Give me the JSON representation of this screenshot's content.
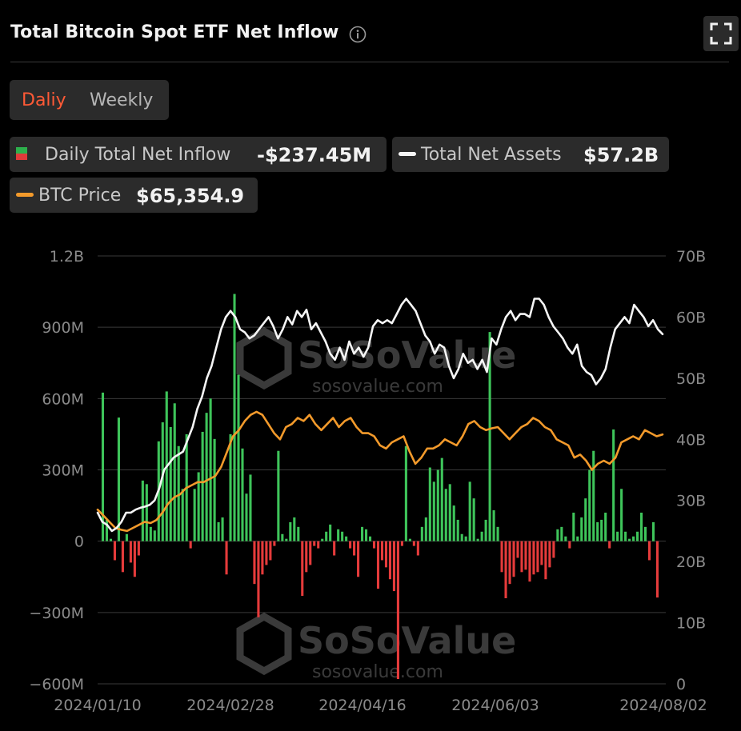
{
  "header": {
    "title": "Total Bitcoin Spot ETF Net Inflow",
    "info_icon": "info-icon",
    "expand_icon": "expand-icon"
  },
  "toggle": {
    "daily_label": "Daliy",
    "weekly_label": "Weekly",
    "active": "daily"
  },
  "legend": {
    "inflow": {
      "label": "Daily Total Net Inflow",
      "value": "-$237.45M"
    },
    "assets": {
      "label": "Total Net Assets",
      "value": "$57.2B"
    },
    "price": {
      "label": "BTC Price",
      "value": "$65,354.9"
    }
  },
  "colors": {
    "positive": "#3ec45a",
    "negative": "#e53b3b",
    "assets_line": "#f5f5f5",
    "price_line": "#f39a2b",
    "accent": "#ff5a36",
    "grid": "#3a3a3a",
    "axis_text": "#8a8a8a"
  },
  "watermark": {
    "brand": "SoSoValue",
    "url": "sosovalue.com"
  },
  "chart_data": {
    "type": "bar",
    "x_tick_labels": [
      "2024/01/10",
      "2024/02/28",
      "2024/04/16",
      "2024/06/03",
      "2024/08/02"
    ],
    "y_left": {
      "ticks": [
        "1.2B",
        "900M",
        "600M",
        "300M",
        "0",
        "−300M",
        "−600M"
      ],
      "ylim": [
        -600,
        1200
      ],
      "unit": "M"
    },
    "y_right": {
      "ticks": [
        "70B",
        "60B",
        "50B",
        "40B",
        "30B",
        "20B",
        "10B",
        "0"
      ],
      "ylim": [
        0,
        70
      ],
      "unit": "B"
    },
    "series": [
      {
        "name": "Daily Total Net Inflow",
        "type": "bar",
        "values": [
          625,
          90,
          10,
          -80,
          520,
          -130,
          30,
          -90,
          -150,
          -60,
          255,
          240,
          60,
          45,
          420,
          500,
          630,
          480,
          580,
          400,
          220,
          450,
          -30,
          220,
          290,
          460,
          540,
          600,
          430,
          80,
          100,
          -140,
          450,
          1040,
          700,
          390,
          200,
          280,
          -180,
          -320,
          -140,
          -100,
          -80,
          -20,
          380,
          30,
          10,
          80,
          100,
          60,
          -230,
          -130,
          -100,
          -20,
          -30,
          10,
          40,
          70,
          -60,
          50,
          40,
          20,
          -30,
          -60,
          -150,
          60,
          50,
          20,
          -30,
          -200,
          -80,
          -110,
          -160,
          -210,
          -580,
          -20,
          400,
          10,
          -20,
          -60,
          60,
          100,
          310,
          250,
          300,
          350,
          220,
          240,
          150,
          90,
          30,
          20,
          250,
          180,
          10,
          40,
          90,
          880,
          130,
          60,
          -130,
          -240,
          -180,
          -150,
          -70,
          -130,
          -120,
          -170,
          -140,
          -130,
          -100,
          -160,
          -110,
          -70,
          50,
          60,
          20,
          -30,
          120,
          20,
          100,
          180,
          300,
          380,
          80,
          90,
          120,
          -30,
          470,
          40,
          220,
          40,
          10,
          20,
          40,
          120,
          60,
          -80,
          80,
          -237
        ]
      },
      {
        "name": "Total Net Assets",
        "type": "line",
        "axis": "right",
        "values": [
          28,
          26.5,
          26,
          25,
          25.5,
          26.5,
          28,
          28,
          28.5,
          28.8,
          29,
          29.3,
          30,
          32,
          35,
          36,
          37,
          37.5,
          38,
          40,
          42,
          45,
          47,
          50,
          52,
          55,
          58,
          60,
          61,
          60,
          58,
          57.5,
          56.5,
          57,
          58,
          59,
          60,
          58.5,
          56.5,
          58,
          60,
          58.8,
          61,
          60,
          61.2,
          58,
          59,
          57.5,
          56,
          54,
          53,
          55,
          53,
          56,
          54,
          55,
          53.5,
          55,
          58.5,
          59.5,
          59,
          59.5,
          59,
          60.5,
          62,
          63,
          62,
          61,
          59,
          57,
          56,
          54,
          55.5,
          55,
          52,
          50,
          51.5,
          54,
          52.5,
          53,
          51.5,
          53,
          51,
          56.5,
          55.5,
          58,
          60,
          61,
          59.5,
          60.5,
          60.5,
          60,
          63,
          63,
          62,
          60,
          58.5,
          57.5,
          56.5,
          55,
          54,
          55.5,
          52,
          51,
          50.5,
          49,
          50,
          51.5,
          55,
          58,
          59,
          60,
          59,
          62,
          61,
          60,
          58.5,
          59.5,
          58,
          57.2
        ]
      },
      {
        "name": "BTC Price",
        "type": "line",
        "axis": "right",
        "values": [
          28.5,
          27.5,
          26.5,
          25.5,
          25.2,
          25,
          25.5,
          26,
          26.5,
          26.3,
          26.8,
          28,
          29.5,
          30.5,
          31,
          32,
          32.5,
          33,
          33,
          33.5,
          34,
          35.5,
          38,
          40.5,
          41.5,
          43,
          44,
          44.5,
          44,
          42.5,
          41,
          40,
          42,
          42.5,
          43.5,
          43,
          44,
          42.5,
          41.5,
          42.5,
          43.5,
          42,
          43,
          43.5,
          42,
          41,
          41,
          40.5,
          39,
          38.5,
          39.5,
          40,
          40.5,
          38,
          36,
          37,
          38.5,
          38.5,
          39,
          40,
          39.5,
          39,
          40.5,
          42.5,
          43,
          42,
          41.5,
          41.8,
          42,
          41,
          40,
          41,
          42,
          42.5,
          43.5,
          43,
          42,
          41.5,
          40,
          39.5,
          39,
          37,
          37.5,
          36.5,
          35,
          36,
          36.5,
          36,
          37,
          39.5,
          40,
          40.5,
          40,
          41.5,
          41,
          40.5,
          40.8
        ]
      }
    ]
  }
}
